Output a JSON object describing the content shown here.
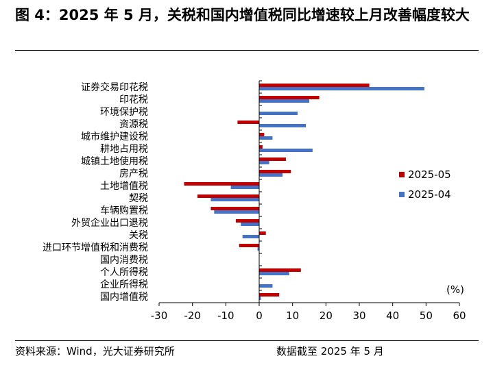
{
  "title": "图 4：2025 年 5 月，关税和国内增值税同比增速较上月改善幅度较大",
  "footer": {
    "source": "资料来源：Wind，光大证券研究所",
    "as_of": "数据截至 2025 年 5 月"
  },
  "colors": {
    "series_2025_05": "#c00000",
    "series_2025_04": "#4472c4"
  },
  "chart_data": {
    "type": "bar",
    "orientation": "horizontal",
    "title": "",
    "xlabel": "",
    "unit_label": "(%)",
    "xlim": [
      -30,
      60
    ],
    "xticks": [
      -30,
      -20,
      -10,
      0,
      10,
      20,
      30,
      40,
      50,
      60
    ],
    "grid": false,
    "legend_position": "right",
    "categories": [
      "证券交易印花税",
      "印花税",
      "环境保护税",
      "资源税",
      "城市维护建设税",
      "耕地占用税",
      "城镇土地使用税",
      "房产税",
      "土地增值税",
      "契税",
      "车辆购置税",
      "外贸企业出口退税",
      "关税",
      "进口环节增值税和消费税",
      "国内消费税",
      "个人所得税",
      "企业所得税",
      "国内增值税"
    ],
    "series": [
      {
        "name": "2025-05",
        "color": "#c00000",
        "values": [
          33,
          18,
          0,
          -6.5,
          1.5,
          1,
          8,
          9.5,
          -22.5,
          -18.5,
          -14.5,
          -7,
          2,
          -6,
          0,
          12.5,
          0,
          6
        ]
      },
      {
        "name": "2025-04",
        "color": "#4472c4",
        "values": [
          49.5,
          15,
          11.5,
          14,
          4,
          16,
          3,
          7,
          -8.5,
          -14.5,
          -13.5,
          -5.5,
          -5,
          -0.5,
          0,
          9,
          4,
          0.5
        ]
      }
    ]
  }
}
